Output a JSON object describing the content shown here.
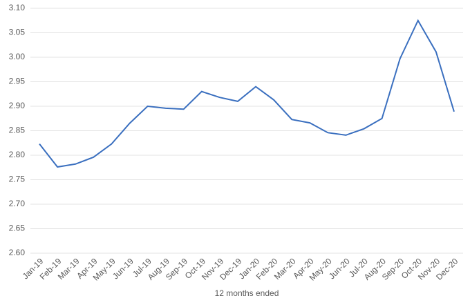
{
  "chart_data": {
    "type": "line",
    "x_label": "12 months ended",
    "categories": [
      "Jan-19",
      "Feb-19",
      "Mar-19",
      "Apr-19",
      "May-19",
      "Jun-19",
      "Jul-19",
      "Aug-19",
      "Sep-19",
      "Oct-19",
      "Nov-19",
      "Dec-19",
      "Jan-20",
      "Feb-20",
      "Mar-20",
      "Apr-20",
      "May-20",
      "Jun-20",
      "Jul-20",
      "Aug-20",
      "Sep-20",
      "Oct-20",
      "Nov-20",
      "Dec-20"
    ],
    "values": [
      2.823,
      2.776,
      2.782,
      2.796,
      2.823,
      2.865,
      2.9,
      2.896,
      2.894,
      2.93,
      2.918,
      2.91,
      2.94,
      2.913,
      2.873,
      2.866,
      2.846,
      2.841,
      2.854,
      2.875,
      2.997,
      3.075,
      3.011,
      2.889
    ],
    "color": "#3a6fbf",
    "ylim": [
      2.6,
      3.1
    ],
    "yticks": [
      {
        "value": 2.6,
        "label": "2.60"
      },
      {
        "value": 2.65,
        "label": "2.65"
      },
      {
        "value": 2.7,
        "label": "2.70"
      },
      {
        "value": 2.75,
        "label": "2.75"
      },
      {
        "value": 2.8,
        "label": "2.80"
      },
      {
        "value": 2.85,
        "label": "2.85"
      },
      {
        "value": 2.9,
        "label": "2.90"
      },
      {
        "value": 2.95,
        "label": "2.95"
      },
      {
        "value": 3.0,
        "label": "3.00"
      },
      {
        "value": 3.05,
        "label": "3.05"
      },
      {
        "value": 3.1,
        "label": "3.10"
      }
    ],
    "grid": true
  }
}
